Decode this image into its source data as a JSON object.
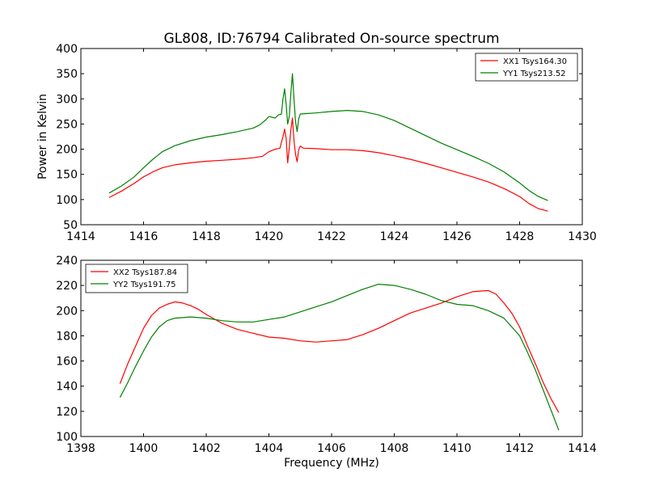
{
  "figure": {
    "title": "GL808, ID:76794 Calibrated On-source spectrum"
  },
  "chart_data": [
    {
      "type": "line",
      "title": "GL808, ID:76794 Calibrated On-source spectrum",
      "xlabel": "",
      "ylabel": "Power in Kelvin",
      "xlim": [
        1414,
        1430
      ],
      "ylim": [
        50,
        400
      ],
      "xticks": [
        1414,
        1416,
        1418,
        1420,
        1422,
        1424,
        1426,
        1428,
        1430
      ],
      "yticks": [
        50,
        100,
        150,
        200,
        250,
        300,
        350,
        400
      ],
      "legend": "top-right",
      "grid": false,
      "series": [
        {
          "name": "XX1 Tsys164.30",
          "color": "#ff0000",
          "points": [
            [
              1414.9,
              104
            ],
            [
              1415.3,
              117
            ],
            [
              1415.7,
              132
            ],
            [
              1416.0,
              145
            ],
            [
              1416.3,
              155
            ],
            [
              1416.6,
              163
            ],
            [
              1417.0,
              169
            ],
            [
              1417.5,
              173
            ],
            [
              1418.0,
              176
            ],
            [
              1418.5,
              178
            ],
            [
              1419.0,
              180
            ],
            [
              1419.5,
              183
            ],
            [
              1419.8,
              186
            ],
            [
              1420.0,
              195
            ],
            [
              1420.2,
              200
            ],
            [
              1420.35,
              202
            ],
            [
              1420.45,
              225
            ],
            [
              1420.5,
              240
            ],
            [
              1420.55,
              222
            ],
            [
              1420.6,
              173
            ],
            [
              1420.65,
              203
            ],
            [
              1420.7,
              238
            ],
            [
              1420.75,
              262
            ],
            [
              1420.8,
              218
            ],
            [
              1420.85,
              190
            ],
            [
              1420.9,
              175
            ],
            [
              1420.95,
              199
            ],
            [
              1421.0,
              206
            ],
            [
              1421.1,
              202
            ],
            [
              1421.5,
              201
            ],
            [
              1422.0,
              199
            ],
            [
              1422.5,
              199
            ],
            [
              1423.0,
              197
            ],
            [
              1423.5,
              193
            ],
            [
              1424.0,
              187
            ],
            [
              1424.5,
              180
            ],
            [
              1425.0,
              172
            ],
            [
              1425.5,
              163
            ],
            [
              1426.0,
              154
            ],
            [
              1426.5,
              145
            ],
            [
              1427.0,
              135
            ],
            [
              1427.5,
              122
            ],
            [
              1428.0,
              106
            ],
            [
              1428.3,
              92
            ],
            [
              1428.6,
              82
            ],
            [
              1428.9,
              77
            ]
          ]
        },
        {
          "name": "YY1 Tsys213.52",
          "color": "#008000",
          "points": [
            [
              1414.9,
              113
            ],
            [
              1415.3,
              127
            ],
            [
              1415.7,
              145
            ],
            [
              1416.0,
              163
            ],
            [
              1416.3,
              180
            ],
            [
              1416.6,
              195
            ],
            [
              1417.0,
              207
            ],
            [
              1417.5,
              217
            ],
            [
              1418.0,
              224
            ],
            [
              1418.5,
              229
            ],
            [
              1419.0,
              235
            ],
            [
              1419.5,
              242
            ],
            [
              1419.7,
              248
            ],
            [
              1419.9,
              258
            ],
            [
              1420.0,
              265
            ],
            [
              1420.2,
              262
            ],
            [
              1420.3,
              268
            ],
            [
              1420.4,
              270
            ],
            [
              1420.45,
              300
            ],
            [
              1420.5,
              320
            ],
            [
              1420.55,
              290
            ],
            [
              1420.6,
              250
            ],
            [
              1420.65,
              265
            ],
            [
              1420.7,
              310
            ],
            [
              1420.75,
              350
            ],
            [
              1420.8,
              300
            ],
            [
              1420.85,
              255
            ],
            [
              1420.9,
              235
            ],
            [
              1420.95,
              260
            ],
            [
              1421.0,
              270
            ],
            [
              1421.5,
              272
            ],
            [
              1422.0,
              275
            ],
            [
              1422.5,
              277
            ],
            [
              1423.0,
              275
            ],
            [
              1423.5,
              268
            ],
            [
              1424.0,
              257
            ],
            [
              1424.5,
              242
            ],
            [
              1425.0,
              227
            ],
            [
              1425.5,
              212
            ],
            [
              1426.0,
              199
            ],
            [
              1426.5,
              186
            ],
            [
              1427.0,
              172
            ],
            [
              1427.5,
              155
            ],
            [
              1428.0,
              133
            ],
            [
              1428.3,
              118
            ],
            [
              1428.6,
              106
            ],
            [
              1428.9,
              98
            ]
          ]
        }
      ]
    },
    {
      "type": "line",
      "title": "",
      "xlabel": "Frequency (MHz)",
      "ylabel": "",
      "xlim": [
        1398,
        1414
      ],
      "ylim": [
        100,
        240
      ],
      "xticks": [
        1398,
        1400,
        1402,
        1404,
        1406,
        1408,
        1410,
        1412,
        1414
      ],
      "yticks": [
        100,
        120,
        140,
        160,
        180,
        200,
        220,
        240
      ],
      "legend": "top-left",
      "grid": false,
      "series": [
        {
          "name": "XX2 Tsys187.84",
          "color": "#ff0000",
          "points": [
            [
              1399.25,
              142
            ],
            [
              1399.5,
              158
            ],
            [
              1399.75,
              172
            ],
            [
              1400.0,
              186
            ],
            [
              1400.25,
              196
            ],
            [
              1400.5,
              202
            ],
            [
              1400.75,
              205
            ],
            [
              1401.0,
              207
            ],
            [
              1401.25,
              206
            ],
            [
              1401.5,
              204
            ],
            [
              1401.75,
              201
            ],
            [
              1402.0,
              197
            ],
            [
              1402.5,
              190
            ],
            [
              1403.0,
              185
            ],
            [
              1403.5,
              182
            ],
            [
              1404.0,
              179
            ],
            [
              1404.5,
              178
            ],
            [
              1405.0,
              176
            ],
            [
              1405.5,
              175
            ],
            [
              1406.0,
              176
            ],
            [
              1406.5,
              177
            ],
            [
              1407.0,
              181
            ],
            [
              1407.5,
              186
            ],
            [
              1408.0,
              192
            ],
            [
              1408.5,
              198
            ],
            [
              1409.0,
              202
            ],
            [
              1409.5,
              206
            ],
            [
              1410.0,
              211
            ],
            [
              1410.5,
              215
            ],
            [
              1411.0,
              216
            ],
            [
              1411.25,
              213
            ],
            [
              1411.5,
              206
            ],
            [
              1411.75,
              198
            ],
            [
              1412.0,
              187
            ],
            [
              1412.25,
              172
            ],
            [
              1412.5,
              158
            ],
            [
              1412.75,
              143
            ],
            [
              1413.0,
              130
            ],
            [
              1413.25,
              119
            ]
          ]
        },
        {
          "name": "YY2 Tsys191.75",
          "color": "#008000",
          "points": [
            [
              1399.25,
              131
            ],
            [
              1399.5,
              143
            ],
            [
              1399.75,
              156
            ],
            [
              1400.0,
              168
            ],
            [
              1400.25,
              179
            ],
            [
              1400.5,
              187
            ],
            [
              1400.75,
              192
            ],
            [
              1401.0,
              194
            ],
            [
              1401.5,
              195
            ],
            [
              1402.0,
              194
            ],
            [
              1402.5,
              192
            ],
            [
              1403.0,
              191
            ],
            [
              1403.5,
              191
            ],
            [
              1404.0,
              193
            ],
            [
              1404.5,
              195
            ],
            [
              1405.0,
              199
            ],
            [
              1405.5,
              203
            ],
            [
              1406.0,
              207
            ],
            [
              1406.5,
              212
            ],
            [
              1407.0,
              217
            ],
            [
              1407.5,
              221
            ],
            [
              1408.0,
              220
            ],
            [
              1408.5,
              217
            ],
            [
              1409.0,
              213
            ],
            [
              1409.5,
              208
            ],
            [
              1410.0,
              205
            ],
            [
              1410.5,
              204
            ],
            [
              1411.0,
              200
            ],
            [
              1411.5,
              194
            ],
            [
              1412.0,
              180
            ],
            [
              1412.25,
              167
            ],
            [
              1412.5,
              153
            ],
            [
              1412.75,
              137
            ],
            [
              1413.0,
              121
            ],
            [
              1413.25,
              105
            ]
          ]
        }
      ]
    }
  ]
}
